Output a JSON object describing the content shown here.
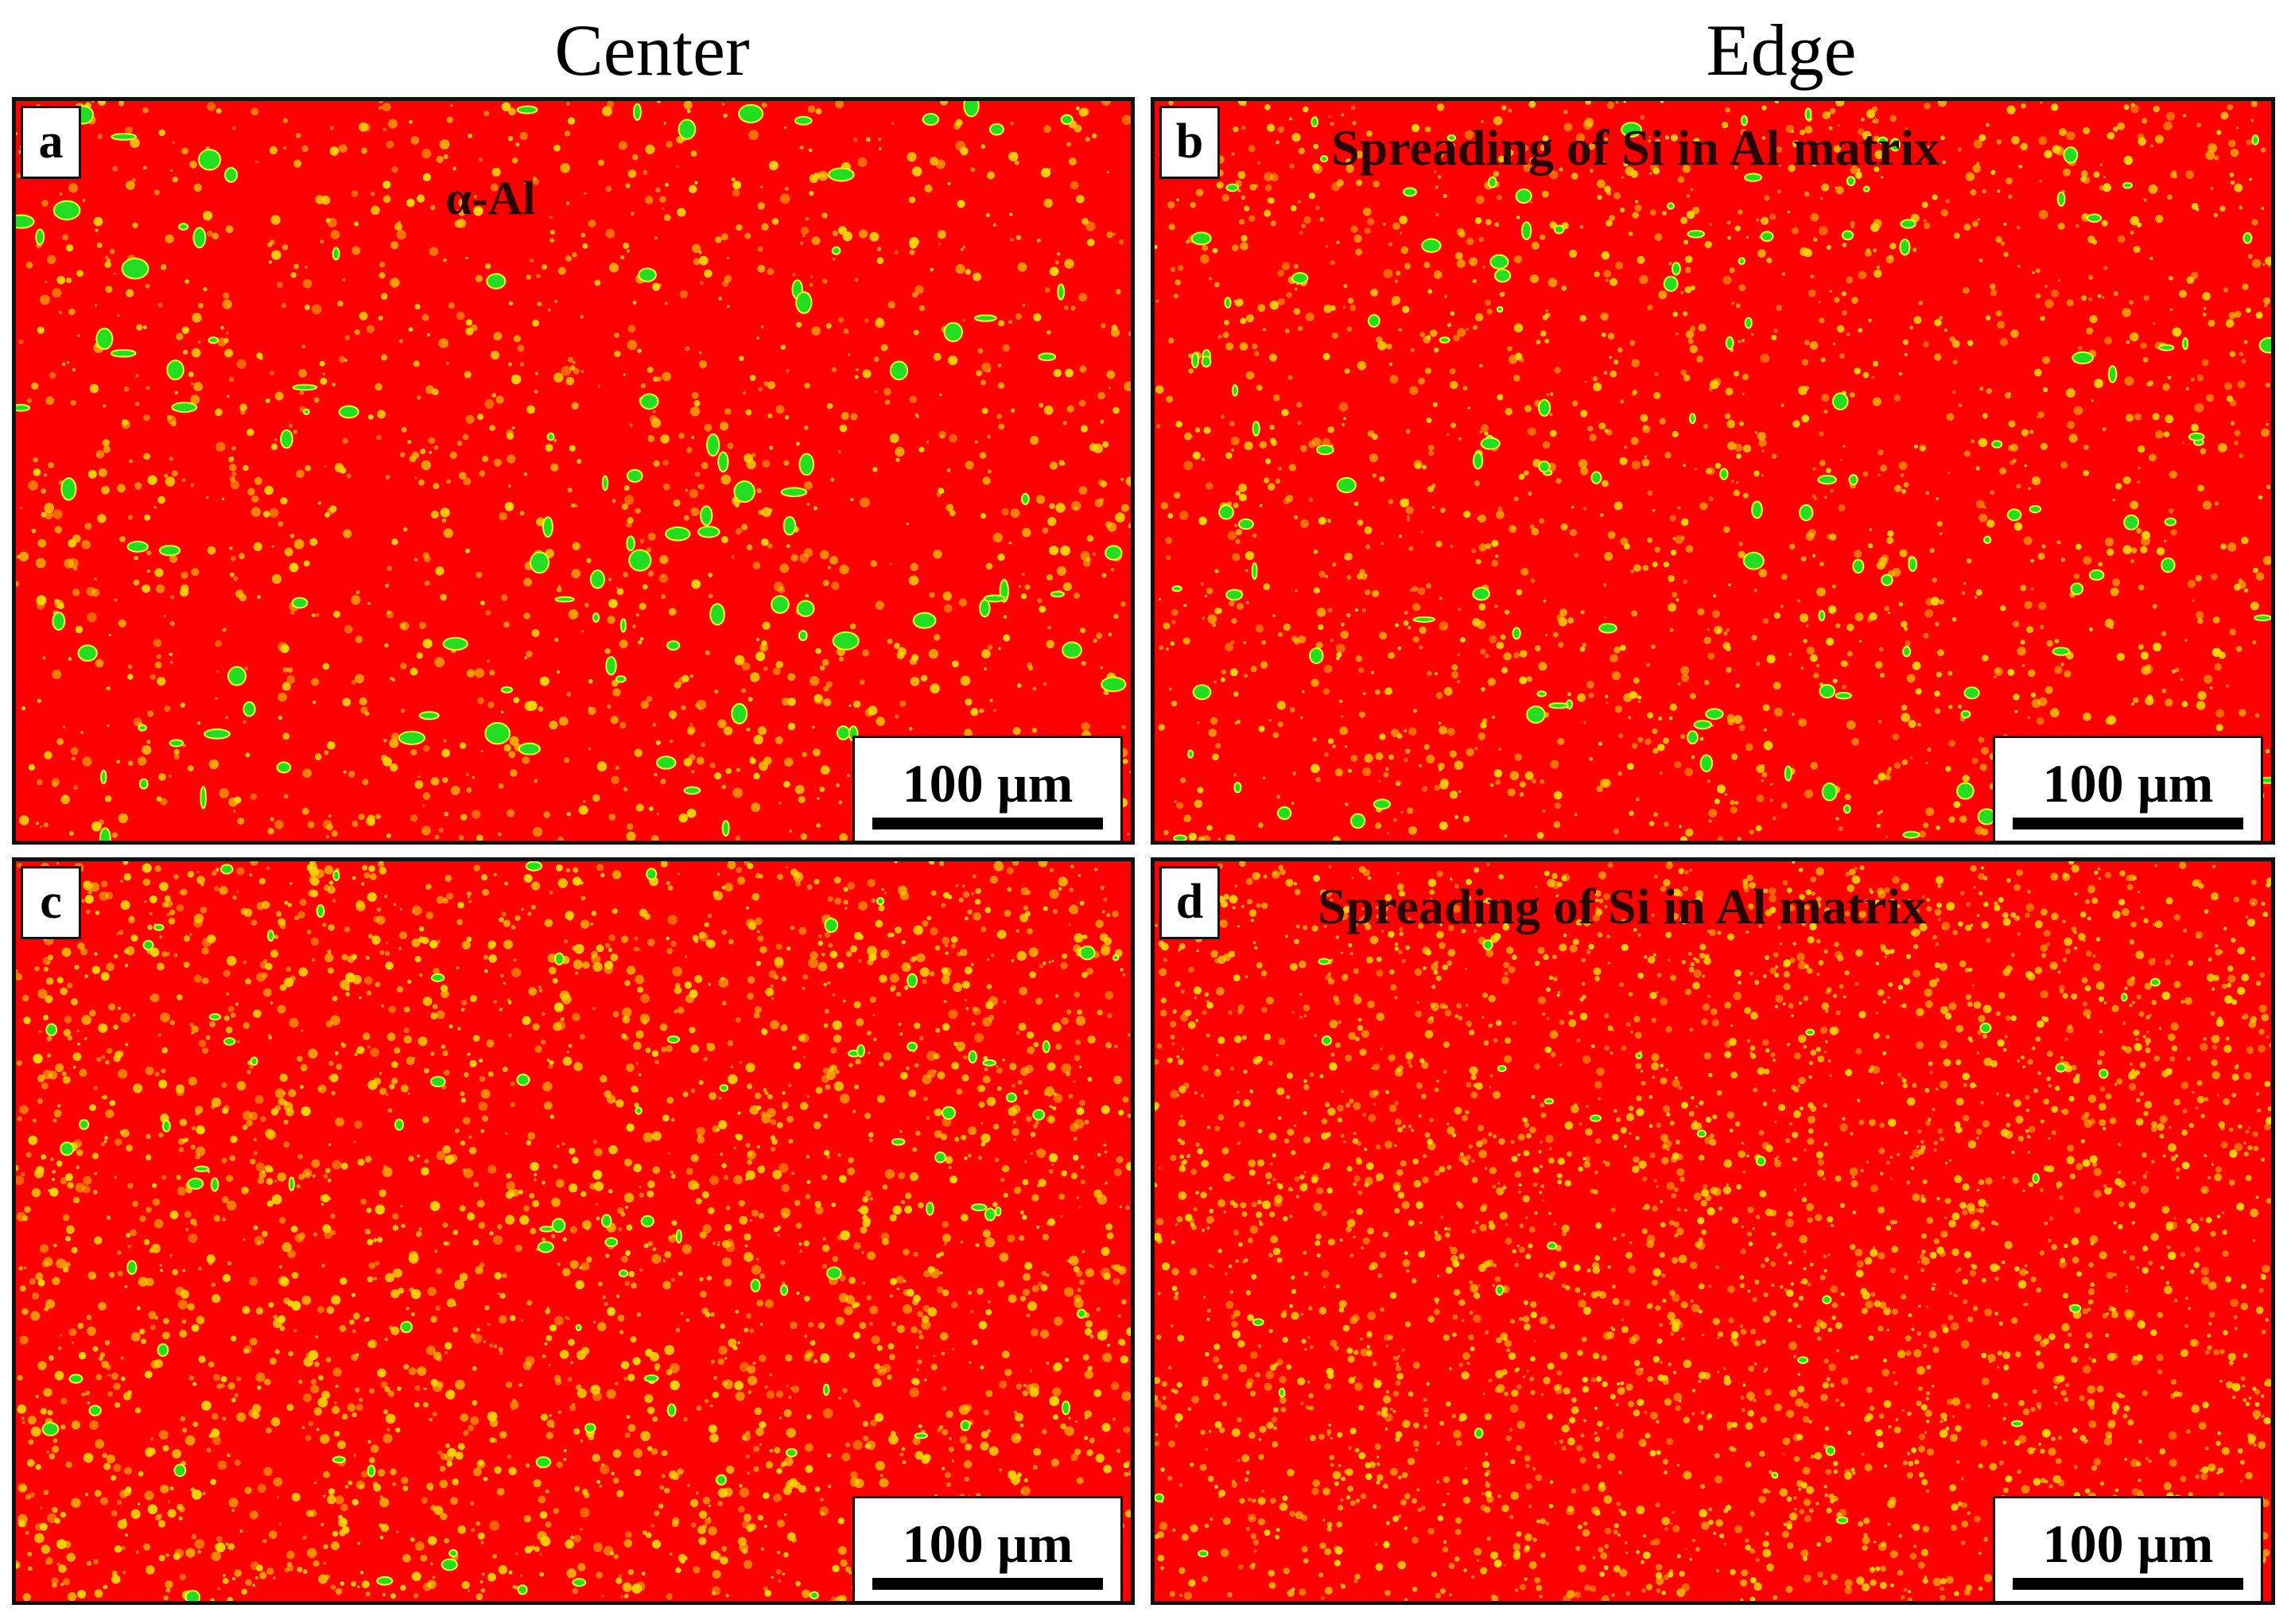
{
  "columns": {
    "left": "Center",
    "right": "Edge"
  },
  "panels": {
    "a": {
      "label": "a",
      "annotation": "α-Al",
      "scalebar": "100 µm"
    },
    "b": {
      "label": "b",
      "annotation": "Spreading of Si in Al matrix",
      "scalebar": "100 µm"
    },
    "c": {
      "label": "c",
      "scalebar": "100 µm"
    },
    "d": {
      "label": "d",
      "annotation": "Spreading of Si in Al matrix",
      "scalebar": "100 µm"
    }
  },
  "colors": {
    "matrix_al": "#ff0000",
    "si_diffuse": "#ffd400",
    "si_particle": "#22dd22",
    "particle_outline": "#f4ff20"
  }
}
